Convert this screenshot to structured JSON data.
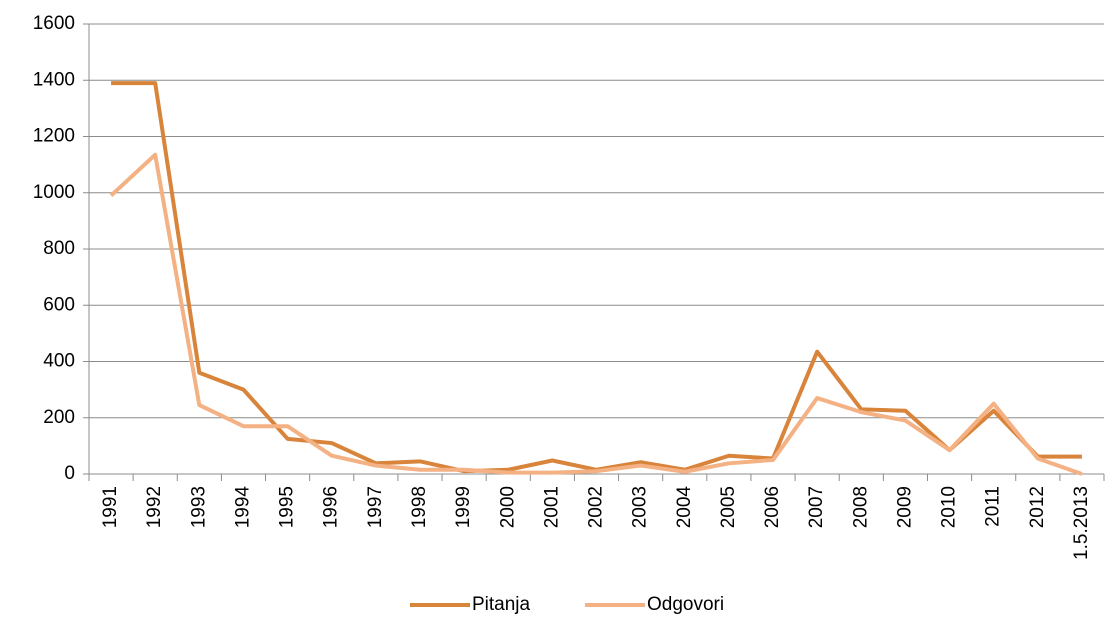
{
  "chart_data": {
    "type": "line",
    "categories": [
      "1991",
      "1992",
      "1993",
      "1994",
      "1995",
      "1996",
      "1997",
      "1998",
      "1999",
      "2000",
      "2001",
      "2002",
      "2003",
      "2004",
      "2005",
      "2006",
      "2007",
      "2008",
      "2009",
      "2010",
      "2011",
      "2012",
      "1.5.2013"
    ],
    "series": [
      {
        "name": "Pitanja",
        "color": "#d9843b",
        "values": [
          1390,
          1390,
          360,
          300,
          125,
          110,
          38,
          45,
          10,
          15,
          48,
          15,
          42,
          15,
          65,
          55,
          435,
          230,
          225,
          85,
          225,
          62,
          62
        ]
      },
      {
        "name": "Odgovori",
        "color": "#f4b183",
        "values": [
          990,
          1135,
          245,
          170,
          170,
          65,
          30,
          15,
          15,
          5,
          5,
          10,
          30,
          8,
          38,
          50,
          270,
          220,
          190,
          85,
          250,
          55,
          0
        ]
      }
    ],
    "ylim": [
      0,
      1600
    ],
    "yticks": [
      0,
      200,
      400,
      600,
      800,
      1000,
      1200,
      1400,
      1600
    ],
    "grid": true,
    "legend": "bottom"
  }
}
